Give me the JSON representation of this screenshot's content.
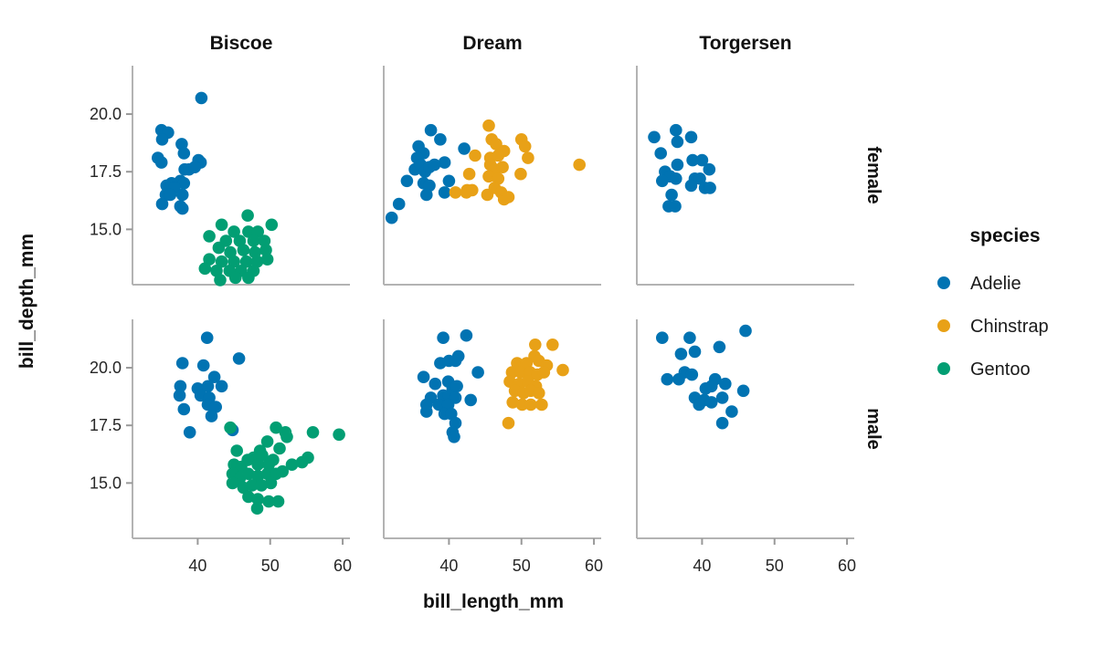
{
  "chart_data": {
    "type": "scatter",
    "title": "",
    "xlabel": "bill_length_mm",
    "ylabel": "bill_depth_mm",
    "legend_title": "species",
    "legend_position": "right",
    "grid": false,
    "facet_columns": [
      "Biscoe",
      "Dream",
      "Torgersen"
    ],
    "facet_rows": [
      "female",
      "male"
    ],
    "xlim": [
      31,
      61
    ],
    "ylim": [
      12.6,
      22.1
    ],
    "x_tick_values": [
      40,
      50,
      60
    ],
    "x_tick_labels": [
      "40",
      "50",
      "60"
    ],
    "y_tick_values": [
      15.0,
      17.5,
      20.0
    ],
    "y_tick_labels": [
      "15.0",
      "17.5",
      "20.0"
    ],
    "axis_color": "#b3b3b3",
    "tick_color": "#999999",
    "text_color": "#1a1a1a",
    "background_color": "#ffffff",
    "series": [
      {
        "name": "Adelie",
        "color": "#0173b2"
      },
      {
        "name": "Chinstrap",
        "color": "#e8a117"
      },
      {
        "name": "Gentoo",
        "color": "#029e73"
      }
    ],
    "facets": [
      {
        "col": "Biscoe",
        "row": "female",
        "points": {
          "Adelie": [
            [
              40.5,
              20.7
            ],
            [
              35.0,
              19.3
            ],
            [
              35.9,
              19.2
            ],
            [
              35.1,
              18.9
            ],
            [
              37.8,
              18.7
            ],
            [
              38.1,
              18.3
            ],
            [
              34.5,
              18.1
            ],
            [
              35.0,
              17.9
            ],
            [
              40.1,
              18.0
            ],
            [
              40.4,
              17.9
            ],
            [
              38.2,
              17.6
            ],
            [
              38.8,
              17.6
            ],
            [
              39.6,
              17.7
            ],
            [
              37.6,
              17.1
            ],
            [
              38.1,
              17.0
            ],
            [
              35.7,
              16.9
            ],
            [
              36.4,
              17.0
            ],
            [
              36.8,
              16.8
            ],
            [
              35.6,
              16.5
            ],
            [
              36.2,
              16.5
            ],
            [
              37.9,
              16.5
            ],
            [
              35.1,
              16.1
            ],
            [
              37.6,
              16.0
            ],
            [
              37.9,
              15.9
            ]
          ],
          "Gentoo": [
            [
              46.9,
              15.6
            ],
            [
              43.3,
              15.2
            ],
            [
              50.2,
              15.2
            ],
            [
              41.6,
              14.7
            ],
            [
              45.0,
              14.9
            ],
            [
              47.0,
              14.9
            ],
            [
              48.3,
              14.9
            ],
            [
              43.9,
              14.5
            ],
            [
              45.8,
              14.5
            ],
            [
              47.7,
              14.5
            ],
            [
              49.2,
              14.5
            ],
            [
              42.9,
              14.2
            ],
            [
              44.5,
              14.0
            ],
            [
              46.3,
              14.1
            ],
            [
              47.9,
              14.0
            ],
            [
              49.4,
              14.1
            ],
            [
              41.6,
              13.7
            ],
            [
              43.3,
              13.6
            ],
            [
              45.0,
              13.6
            ],
            [
              46.7,
              13.6
            ],
            [
              48.2,
              13.6
            ],
            [
              49.6,
              13.7
            ],
            [
              41.0,
              13.3
            ],
            [
              42.6,
              13.2
            ],
            [
              44.4,
              13.2
            ],
            [
              46.0,
              13.2
            ],
            [
              47.7,
              13.2
            ],
            [
              43.1,
              12.8
            ],
            [
              45.2,
              12.9
            ],
            [
              47.0,
              12.9
            ]
          ]
        }
      },
      {
        "col": "Dream",
        "row": "female",
        "points": {
          "Adelie": [
            [
              37.5,
              19.3
            ],
            [
              38.8,
              18.9
            ],
            [
              35.8,
              18.6
            ],
            [
              36.5,
              18.3
            ],
            [
              42.1,
              18.5
            ],
            [
              35.6,
              18.1
            ],
            [
              39.4,
              17.9
            ],
            [
              35.3,
              17.6
            ],
            [
              36.1,
              17.8
            ],
            [
              36.7,
              17.5
            ],
            [
              37.3,
              17.7
            ],
            [
              38.0,
              17.8
            ],
            [
              34.2,
              17.1
            ],
            [
              36.5,
              17.0
            ],
            [
              37.3,
              16.9
            ],
            [
              40.0,
              17.1
            ],
            [
              36.9,
              16.5
            ],
            [
              39.4,
              16.6
            ],
            [
              33.1,
              16.1
            ],
            [
              32.1,
              15.5
            ]
          ],
          "Chinstrap": [
            [
              45.5,
              19.5
            ],
            [
              45.9,
              18.9
            ],
            [
              46.5,
              18.7
            ],
            [
              50.0,
              18.9
            ],
            [
              47.6,
              18.4
            ],
            [
              43.6,
              18.2
            ],
            [
              45.7,
              18.1
            ],
            [
              46.8,
              18.2
            ],
            [
              50.5,
              18.6
            ],
            [
              50.9,
              18.1
            ],
            [
              45.7,
              17.8
            ],
            [
              46.3,
              17.6
            ],
            [
              47.4,
              17.7
            ],
            [
              42.8,
              17.4
            ],
            [
              45.5,
              17.3
            ],
            [
              46.8,
              17.2
            ],
            [
              49.9,
              17.4
            ],
            [
              42.5,
              16.7
            ],
            [
              40.9,
              16.6
            ],
            [
              42.4,
              16.6
            ],
            [
              43.2,
              16.7
            ],
            [
              45.3,
              16.5
            ],
            [
              46.3,
              16.8
            ],
            [
              47.2,
              16.6
            ],
            [
              47.6,
              16.3
            ],
            [
              48.2,
              16.4
            ],
            [
              58.0,
              17.8
            ]
          ]
        }
      },
      {
        "col": "Torgersen",
        "row": "female",
        "points": {
          "Adelie": [
            [
              33.4,
              19.0
            ],
            [
              36.4,
              19.3
            ],
            [
              36.6,
              18.8
            ],
            [
              38.5,
              19.0
            ],
            [
              34.3,
              18.3
            ],
            [
              36.6,
              17.8
            ],
            [
              38.7,
              18.0
            ],
            [
              40.0,
              18.0
            ],
            [
              41.0,
              17.6
            ],
            [
              34.9,
              17.5
            ],
            [
              35.6,
              17.3
            ],
            [
              36.4,
              17.2
            ],
            [
              39.0,
              17.2
            ],
            [
              39.7,
              17.2
            ],
            [
              34.5,
              17.1
            ],
            [
              38.5,
              16.9
            ],
            [
              40.4,
              16.8
            ],
            [
              41.1,
              16.8
            ],
            [
              35.8,
              16.5
            ],
            [
              35.4,
              16.0
            ],
            [
              36.3,
              16.0
            ]
          ]
        }
      },
      {
        "col": "Biscoe",
        "row": "male",
        "points": {
          "Adelie": [
            [
              41.3,
              21.3
            ],
            [
              45.7,
              20.4
            ],
            [
              37.9,
              20.2
            ],
            [
              40.8,
              20.1
            ],
            [
              42.3,
              19.6
            ],
            [
              37.6,
              19.2
            ],
            [
              40.0,
              19.1
            ],
            [
              41.4,
              19.2
            ],
            [
              43.3,
              19.2
            ],
            [
              37.5,
              18.8
            ],
            [
              40.4,
              18.8
            ],
            [
              41.6,
              18.7
            ],
            [
              38.1,
              18.2
            ],
            [
              41.4,
              18.4
            ],
            [
              42.5,
              18.3
            ],
            [
              41.9,
              17.9
            ],
            [
              38.9,
              17.2
            ],
            [
              44.8,
              17.3
            ]
          ],
          "Gentoo": [
            [
              44.5,
              17.4
            ],
            [
              50.8,
              17.4
            ],
            [
              52.1,
              17.2
            ],
            [
              55.9,
              17.2
            ],
            [
              59.5,
              17.1
            ],
            [
              49.6,
              16.8
            ],
            [
              52.3,
              17.0
            ],
            [
              48.6,
              16.4
            ],
            [
              51.3,
              16.5
            ],
            [
              45.4,
              16.4
            ],
            [
              47.7,
              16.1
            ],
            [
              48.9,
              16.2
            ],
            [
              50.4,
              16.0
            ],
            [
              53.0,
              15.8
            ],
            [
              54.4,
              15.9
            ],
            [
              55.2,
              16.1
            ],
            [
              45.0,
              15.8
            ],
            [
              46.0,
              15.7
            ],
            [
              46.9,
              16.0
            ],
            [
              48.3,
              15.8
            ],
            [
              49.8,
              15.8
            ],
            [
              44.8,
              15.4
            ],
            [
              45.8,
              15.2
            ],
            [
              47.0,
              15.4
            ],
            [
              48.3,
              15.3
            ],
            [
              49.6,
              15.4
            ],
            [
              50.8,
              15.4
            ],
            [
              51.7,
              15.5
            ],
            [
              44.8,
              15.0
            ],
            [
              46.3,
              14.8
            ],
            [
              47.5,
              14.9
            ],
            [
              48.8,
              14.9
            ],
            [
              50.1,
              15.0
            ],
            [
              47.0,
              14.4
            ],
            [
              48.3,
              14.3
            ],
            [
              49.8,
              14.2
            ],
            [
              51.1,
              14.2
            ],
            [
              48.2,
              13.9
            ]
          ]
        }
      },
      {
        "col": "Dream",
        "row": "male",
        "points": {
          "Adelie": [
            [
              39.2,
              21.3
            ],
            [
              42.4,
              21.4
            ],
            [
              41.3,
              20.5
            ],
            [
              38.8,
              20.2
            ],
            [
              40.0,
              20.3
            ],
            [
              40.9,
              20.3
            ],
            [
              44.0,
              19.8
            ],
            [
              36.5,
              19.6
            ],
            [
              38.1,
              19.3
            ],
            [
              39.9,
              19.4
            ],
            [
              40.5,
              19.1
            ],
            [
              41.1,
              19.2
            ],
            [
              37.5,
              18.7
            ],
            [
              39.2,
              18.8
            ],
            [
              40.0,
              18.8
            ],
            [
              40.9,
              18.7
            ],
            [
              36.9,
              18.4
            ],
            [
              38.6,
              18.4
            ],
            [
              39.9,
              18.4
            ],
            [
              43.0,
              18.6
            ],
            [
              36.9,
              18.1
            ],
            [
              39.4,
              18.0
            ],
            [
              40.3,
              18.0
            ],
            [
              40.9,
              17.6
            ],
            [
              40.5,
              17.2
            ],
            [
              40.7,
              17.0
            ]
          ],
          "Chinstrap": [
            [
              51.9,
              21.0
            ],
            [
              54.3,
              21.0
            ],
            [
              51.8,
              20.5
            ],
            [
              55.7,
              19.9
            ],
            [
              49.4,
              20.2
            ],
            [
              50.7,
              20.2
            ],
            [
              52.4,
              20.3
            ],
            [
              53.5,
              20.1
            ],
            [
              48.7,
              19.8
            ],
            [
              49.9,
              19.8
            ],
            [
              51.2,
              19.8
            ],
            [
              52.2,
              19.7
            ],
            [
              53.1,
              19.8
            ],
            [
              48.4,
              19.4
            ],
            [
              49.7,
              19.3
            ],
            [
              50.9,
              19.4
            ],
            [
              52.0,
              19.2
            ],
            [
              49.1,
              19.0
            ],
            [
              50.3,
              18.9
            ],
            [
              51.3,
              19.0
            ],
            [
              52.4,
              18.9
            ],
            [
              48.8,
              18.5
            ],
            [
              50.1,
              18.4
            ],
            [
              51.3,
              18.4
            ],
            [
              52.8,
              18.4
            ],
            [
              48.2,
              17.6
            ]
          ]
        }
      },
      {
        "col": "Torgersen",
        "row": "male",
        "points": {
          "Adelie": [
            [
              34.5,
              21.3
            ],
            [
              46.0,
              21.6
            ],
            [
              38.3,
              21.3
            ],
            [
              37.1,
              20.6
            ],
            [
              42.4,
              20.9
            ],
            [
              39.0,
              20.7
            ],
            [
              37.6,
              19.8
            ],
            [
              35.2,
              19.5
            ],
            [
              36.8,
              19.5
            ],
            [
              38.6,
              19.7
            ],
            [
              41.8,
              19.5
            ],
            [
              43.2,
              19.3
            ],
            [
              40.5,
              19.1
            ],
            [
              41.3,
              19.2
            ],
            [
              45.7,
              19.0
            ],
            [
              39.0,
              18.7
            ],
            [
              40.3,
              18.6
            ],
            [
              41.3,
              18.5
            ],
            [
              42.8,
              18.7
            ],
            [
              39.6,
              18.4
            ],
            [
              44.1,
              18.1
            ],
            [
              42.8,
              17.6
            ]
          ]
        }
      }
    ]
  }
}
